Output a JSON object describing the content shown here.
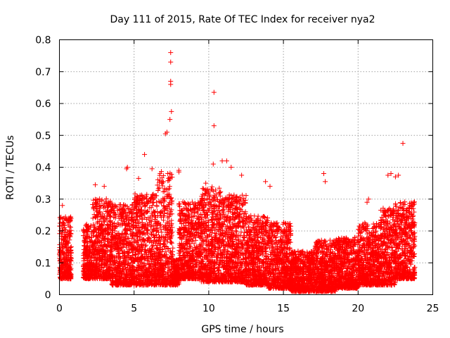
{
  "chart_data": {
    "type": "scatter",
    "title": "Day 111 of 2015, Rate Of TEC Index for receiver nya2",
    "xlabel": "GPS time / hours",
    "ylabel": "ROTI / TECUs",
    "xlim": [
      0,
      25
    ],
    "ylim": [
      0,
      0.8
    ],
    "x_ticks": [
      0,
      5,
      10,
      15,
      20,
      25
    ],
    "y_ticks": [
      0,
      0.1,
      0.2,
      0.3,
      0.4,
      0.5,
      0.6,
      0.7,
      0.8
    ],
    "grid": true,
    "marker": "plus",
    "color": "#ff0000",
    "outliers": [
      {
        "x": 7.45,
        "y": 0.76
      },
      {
        "x": 7.45,
        "y": 0.73
      },
      {
        "x": 7.45,
        "y": 0.67
      },
      {
        "x": 7.45,
        "y": 0.66
      },
      {
        "x": 7.5,
        "y": 0.575
      },
      {
        "x": 7.4,
        "y": 0.55
      },
      {
        "x": 7.2,
        "y": 0.51
      },
      {
        "x": 7.1,
        "y": 0.505
      },
      {
        "x": 10.35,
        "y": 0.635
      },
      {
        "x": 10.35,
        "y": 0.53
      },
      {
        "x": 10.3,
        "y": 0.41
      },
      {
        "x": 23.0,
        "y": 0.475
      },
      {
        "x": 5.7,
        "y": 0.44
      },
      {
        "x": 4.55,
        "y": 0.4
      },
      {
        "x": 4.5,
        "y": 0.395
      },
      {
        "x": 6.2,
        "y": 0.395
      },
      {
        "x": 8.0,
        "y": 0.39
      },
      {
        "x": 8.0,
        "y": 0.385
      },
      {
        "x": 11.2,
        "y": 0.42
      },
      {
        "x": 10.9,
        "y": 0.42
      },
      {
        "x": 11.5,
        "y": 0.4
      },
      {
        "x": 17.7,
        "y": 0.38
      },
      {
        "x": 17.8,
        "y": 0.355
      },
      {
        "x": 22.0,
        "y": 0.375
      },
      {
        "x": 22.2,
        "y": 0.38
      },
      {
        "x": 22.5,
        "y": 0.37
      },
      {
        "x": 22.7,
        "y": 0.375
      },
      {
        "x": 12.2,
        "y": 0.375
      },
      {
        "x": 13.8,
        "y": 0.355
      },
      {
        "x": 14.1,
        "y": 0.34
      },
      {
        "x": 2.4,
        "y": 0.345
      },
      {
        "x": 3.0,
        "y": 0.34
      },
      {
        "x": 5.3,
        "y": 0.365
      },
      {
        "x": 9.8,
        "y": 0.35
      },
      {
        "x": 10.0,
        "y": 0.325
      },
      {
        "x": 20.7,
        "y": 0.3
      },
      {
        "x": 20.6,
        "y": 0.29
      },
      {
        "x": 0.2,
        "y": 0.28
      },
      {
        "x": 21.8,
        "y": 0.25
      }
    ],
    "segments": [
      {
        "x0": 0.0,
        "x1": 0.8,
        "top": 0.22,
        "base": 0.05
      },
      {
        "x0": 1.6,
        "x1": 2.2,
        "top": 0.2,
        "base": 0.05
      },
      {
        "x0": 2.2,
        "x1": 3.5,
        "top": 0.27,
        "base": 0.05
      },
      {
        "x0": 3.5,
        "x1": 5.0,
        "top": 0.25,
        "base": 0.03
      },
      {
        "x0": 5.0,
        "x1": 6.5,
        "top": 0.28,
        "base": 0.03
      },
      {
        "x0": 6.5,
        "x1": 7.6,
        "top": 0.34,
        "base": 0.03
      },
      {
        "x0": 7.6,
        "x1": 8.0,
        "top": 0.1,
        "base": 0.03
      },
      {
        "x0": 8.0,
        "x1": 9.5,
        "top": 0.26,
        "base": 0.05
      },
      {
        "x0": 9.5,
        "x1": 11.0,
        "top": 0.3,
        "base": 0.04
      },
      {
        "x0": 11.0,
        "x1": 12.5,
        "top": 0.28,
        "base": 0.04
      },
      {
        "x0": 12.5,
        "x1": 14.0,
        "top": 0.22,
        "base": 0.03
      },
      {
        "x0": 14.0,
        "x1": 15.5,
        "top": 0.2,
        "base": 0.02
      },
      {
        "x0": 15.5,
        "x1": 17.0,
        "top": 0.12,
        "base": 0.01
      },
      {
        "x0": 17.0,
        "x1": 18.5,
        "top": 0.15,
        "base": 0.01
      },
      {
        "x0": 18.5,
        "x1": 20.0,
        "top": 0.16,
        "base": 0.02
      },
      {
        "x0": 20.0,
        "x1": 21.5,
        "top": 0.2,
        "base": 0.03
      },
      {
        "x0": 21.5,
        "x1": 22.5,
        "top": 0.24,
        "base": 0.03
      },
      {
        "x0": 22.5,
        "x1": 23.8,
        "top": 0.26,
        "base": 0.05
      }
    ]
  }
}
